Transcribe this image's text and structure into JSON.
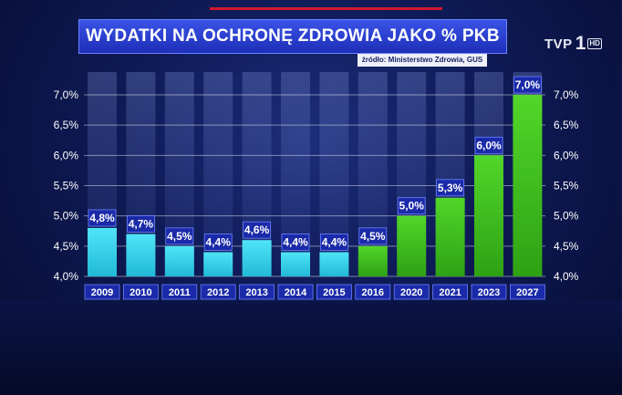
{
  "title": "WYDATKI NA OCHRONĘ ZDROWIA JAKO % PKB",
  "source": "źródło: Ministerstwo Zdrowia, GUS",
  "logo": {
    "text": "TVP",
    "number": "1",
    "badge": "HD"
  },
  "colors": {
    "bar_cyan": "#3ad7ee",
    "bar_green": "#3fc21c",
    "label_box": "#1a2aa8",
    "title_bar": "#2b3fd8"
  },
  "chart_data": {
    "type": "bar",
    "title": "WYDATKI NA OCHRONĘ ZDROWIA JAKO % PKB",
    "categories": [
      "2009",
      "2010",
      "2011",
      "2012",
      "2013",
      "2014",
      "2015",
      "2016",
      "2020",
      "2021",
      "2023",
      "2027"
    ],
    "values": [
      4.8,
      4.7,
      4.5,
      4.4,
      4.6,
      4.4,
      4.4,
      4.5,
      5.0,
      5.3,
      6.0,
      7.0
    ],
    "value_labels": [
      "4,8%",
      "4,7%",
      "4,5%",
      "4,4%",
      "4,6%",
      "4,4%",
      "4,4%",
      "4,5%",
      "5,0%",
      "5,3%",
      "6,0%",
      "7,0%"
    ],
    "bar_colors": [
      "cyan",
      "cyan",
      "cyan",
      "cyan",
      "cyan",
      "cyan",
      "cyan",
      "green",
      "green",
      "green",
      "green",
      "green"
    ],
    "ylim": [
      4.0,
      7.0
    ],
    "yticks": [
      4.0,
      4.5,
      5.0,
      5.5,
      6.0,
      6.5,
      7.0
    ],
    "ytick_labels": [
      "4,0%",
      "4,5%",
      "5,0%",
      "5,5%",
      "6,0%",
      "6,5%",
      "7,0%"
    ],
    "grid": true,
    "xlabel": "",
    "ylabel": ""
  }
}
